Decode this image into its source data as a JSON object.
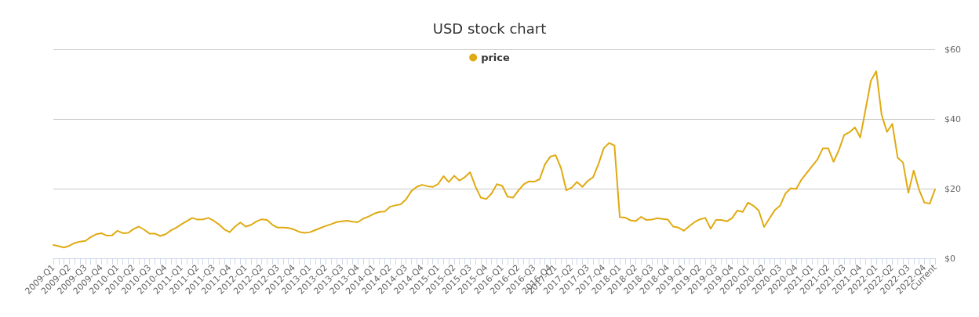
{
  "chart_data": {
    "type": "line",
    "title": "USD stock chart",
    "categories": [
      "2009-Q1",
      null,
      null,
      "2009-Q2",
      null,
      null,
      "2009-Q3",
      null,
      null,
      "2009-Q4",
      null,
      null,
      "2010-Q1",
      null,
      null,
      "2010-Q2",
      null,
      null,
      "2010-Q3",
      null,
      null,
      "2010-Q4",
      null,
      null,
      "2011-Q1",
      null,
      null,
      "2011-Q2",
      null,
      null,
      "2011-Q3",
      null,
      null,
      "2011-Q4",
      null,
      null,
      "2012-Q1",
      null,
      null,
      "2012-Q2",
      null,
      null,
      "2012-Q3",
      null,
      null,
      "2012-Q4",
      null,
      null,
      "2013-Q1",
      null,
      null,
      "2013-Q2",
      null,
      null,
      "2013-Q3",
      null,
      null,
      "2013-Q4",
      null,
      null,
      "2014-Q1",
      null,
      null,
      "2014-Q2",
      null,
      null,
      "2014-Q3",
      null,
      null,
      "2014-Q4",
      null,
      null,
      "2015-Q1",
      null,
      null,
      "2015-Q2",
      null,
      null,
      "2015-Q3",
      null,
      null,
      "2015-Q4",
      null,
      null,
      "2016-Q1",
      null,
      null,
      "2016-Q2",
      null,
      null,
      "2016-Q3",
      null,
      null,
      "2016-Q4",
      "2017-Q1",
      null,
      null,
      "2017-Q2",
      null,
      null,
      "2017-Q3",
      null,
      null,
      "2017-Q4",
      null,
      null,
      "2018-Q1",
      null,
      null,
      "2018-Q2",
      null,
      null,
      "2018-Q3",
      null,
      null,
      "2018-Q4",
      null,
      null,
      "2019-Q1",
      null,
      null,
      "2019-Q2",
      null,
      null,
      "2019-Q3",
      null,
      null,
      "2019-Q4",
      null,
      null,
      "2020-Q1",
      null,
      null,
      "2020-Q2",
      null,
      null,
      "2020-Q3",
      null,
      null,
      "2020-Q4",
      null,
      null,
      "2021-Q1",
      null,
      null,
      "2021-Q2",
      null,
      null,
      "2021-Q3",
      null,
      null,
      "2021-Q4",
      null,
      null,
      "2022-Q1",
      null,
      null,
      "2022-Q2",
      null,
      null,
      "2022-Q3",
      null,
      null,
      "2022-Q4",
      null,
      "Current"
    ],
    "series": [
      {
        "name": "price",
        "color": "#e0aa12",
        "values": [
          3.8,
          3.5,
          3.1,
          3.6,
          4.4,
          4.8,
          5.0,
          6.1,
          6.9,
          7.2,
          6.5,
          6.6,
          7.9,
          7.2,
          7.3,
          8.4,
          9.1,
          8.2,
          7.1,
          7.1,
          6.4,
          6.9,
          8.0,
          8.8,
          9.8,
          10.7,
          11.6,
          11.1,
          11.2,
          11.6,
          10.8,
          9.7,
          8.3,
          7.5,
          9.1,
          10.3,
          9.1,
          9.6,
          10.6,
          11.2,
          11.0,
          9.6,
          8.8,
          8.8,
          8.7,
          8.3,
          7.6,
          7.3,
          7.5,
          8.1,
          8.7,
          9.3,
          9.8,
          10.4,
          10.6,
          10.8,
          10.5,
          10.4,
          11.4,
          12.0,
          12.8,
          13.3,
          13.4,
          14.8,
          15.2,
          15.5,
          16.9,
          19.3,
          20.5,
          21.1,
          20.7,
          20.5,
          21.3,
          23.6,
          21.9,
          23.7,
          22.3,
          23.3,
          24.7,
          20.6,
          17.4,
          17.0,
          18.6,
          21.3,
          20.8,
          17.7,
          17.4,
          19.4,
          21.2,
          22.1,
          22.0,
          22.7,
          27.0,
          29.2,
          29.6,
          25.9,
          19.5,
          20.3,
          21.9,
          20.5,
          22.2,
          23.3,
          27.0,
          31.6,
          33.1,
          32.4,
          11.8,
          11.7,
          10.9,
          10.7,
          11.9,
          11.0,
          11.1,
          11.5,
          11.3,
          11.1,
          9.1,
          8.8,
          7.9,
          9.2,
          10.4,
          11.2,
          11.6,
          8.5,
          11.0,
          11.0,
          10.6,
          11.5,
          13.7,
          13.3,
          16.0,
          15.1,
          13.7,
          9.0,
          11.4,
          13.8,
          15.1,
          18.6,
          20.1,
          19.9,
          22.6,
          24.5,
          26.5,
          28.4,
          31.6,
          31.6,
          27.7,
          31.1,
          35.4,
          36.2,
          37.6,
          34.7,
          42.8,
          51.0,
          53.7,
          41.2,
          36.3,
          38.6,
          28.9,
          27.5,
          18.8,
          25.2,
          19.7,
          16.0,
          15.7,
          19.8
        ]
      }
    ],
    "ylim": [
      0,
      60
    ],
    "yticks": [
      {
        "value": 0,
        "label": "$0"
      },
      {
        "value": 20,
        "label": "$20"
      },
      {
        "value": 40,
        "label": "$40"
      },
      {
        "value": 60,
        "label": "$60"
      }
    ],
    "grid": "y",
    "legend": "top",
    "marker": "none",
    "line_style": "solid"
  }
}
